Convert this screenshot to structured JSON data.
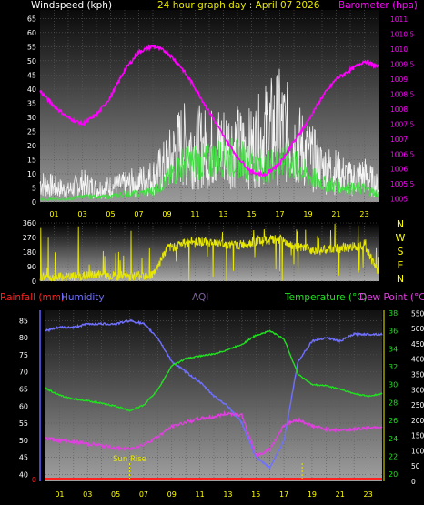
{
  "chart_data": [
    {
      "type": "line",
      "title": "24 hour graph day : April 07 2026",
      "ylabel_left": "Windspeed (kph)",
      "ylabel_right": "Barometer (hpa)",
      "x_ticks": [
        "01",
        "03",
        "05",
        "07",
        "09",
        "11",
        "13",
        "15",
        "17",
        "19",
        "21",
        "23"
      ],
      "ylim_left": [
        0,
        68
      ],
      "yticks_left": [
        0,
        5,
        10,
        15,
        20,
        25,
        30,
        35,
        40,
        45,
        50,
        55,
        60,
        65
      ],
      "ylim_right": [
        1004.9,
        1011.3
      ],
      "yticks_right": [
        1005,
        1005.5,
        1006,
        1006.5,
        1007,
        1007.5,
        1008,
        1008.5,
        1009,
        1009.5,
        1010,
        1010.5,
        1011
      ],
      "grid": true,
      "series": [
        {
          "name": "Barometer",
          "color": "#ff00ff",
          "x": [
            0,
            1,
            2,
            3,
            4,
            5,
            6,
            7,
            8,
            9,
            10,
            11,
            12,
            13,
            14,
            15,
            16,
            17,
            18,
            19,
            20,
            21,
            22,
            23,
            24
          ],
          "y": [
            1008.6,
            1008.1,
            1007.7,
            1007.5,
            1007.8,
            1008.4,
            1009.3,
            1009.9,
            1010.1,
            1009.9,
            1009.4,
            1008.7,
            1007.9,
            1007.1,
            1006.4,
            1005.9,
            1005.8,
            1006.2,
            1006.9,
            1007.6,
            1008.4,
            1009.0,
            1009.3,
            1009.6,
            1009.4
          ]
        },
        {
          "name": "Gust",
          "color": "#ffffff",
          "x": [
            0,
            1,
            2,
            3,
            4,
            5,
            6,
            7,
            8,
            9,
            10,
            11,
            12,
            13,
            14,
            15,
            16,
            17,
            18,
            19,
            20,
            21,
            22,
            23,
            24
          ],
          "y": [
            10,
            8,
            6,
            10,
            7,
            8,
            9,
            11,
            13,
            20,
            30,
            29,
            28,
            30,
            29,
            28,
            36,
            40,
            32,
            25,
            18,
            16,
            12,
            14,
            8
          ]
        },
        {
          "name": "Average",
          "color": "#40e040",
          "x": [
            0,
            1,
            2,
            3,
            4,
            5,
            6,
            7,
            8,
            9,
            10,
            11,
            12,
            13,
            14,
            15,
            16,
            17,
            18,
            19,
            20,
            21,
            22,
            23,
            24
          ],
          "y": [
            1,
            1,
            1,
            2,
            2,
            2,
            3,
            3,
            4,
            8,
            14,
            15,
            15,
            17,
            16,
            15,
            13,
            16,
            14,
            10,
            7,
            6,
            5,
            5,
            3
          ]
        }
      ]
    },
    {
      "type": "scatter",
      "title": "",
      "ylabel_right": "N W S E N",
      "compass": [
        "N",
        "W",
        "S",
        "E",
        "N"
      ],
      "ylim": [
        0,
        360
      ],
      "yticks": [
        0,
        90,
        180,
        270,
        360
      ],
      "series": [
        {
          "name": "Wind direction",
          "color": "#e8e800",
          "x": [
            0,
            1,
            2,
            3,
            4,
            5,
            6,
            7,
            8,
            9,
            10,
            11,
            12,
            13,
            14,
            15,
            16,
            17,
            18,
            19,
            20,
            21,
            22,
            23,
            24
          ],
          "y": [
            30,
            20,
            25,
            30,
            40,
            35,
            30,
            35,
            40,
            200,
            230,
            250,
            240,
            230,
            220,
            240,
            250,
            260,
            210,
            200,
            190,
            200,
            210,
            230,
            50
          ]
        }
      ]
    },
    {
      "type": "line",
      "title": "",
      "labels_top": {
        "rainfall": "Rainfall (mm)",
        "humidity": "Humidity",
        "aqi": "AQI",
        "temperature": "Temperature (°C)",
        "dewpoint": "Dew Point (°C)"
      },
      "x_ticks": [
        "01",
        "03",
        "05",
        "07",
        "09",
        "11",
        "13",
        "15",
        "17",
        "19",
        "21",
        "23"
      ],
      "ylim_humidity": [
        38,
        88
      ],
      "yticks_humidity": [
        40,
        45,
        50,
        55,
        60,
        65,
        70,
        75,
        80,
        85
      ],
      "ylim_temp": [
        19.2,
        38.3
      ],
      "yticks_temp": [
        20,
        22,
        24,
        26,
        28,
        30,
        32,
        34,
        36,
        38
      ],
      "ylim_aqi": [
        0,
        560
      ],
      "yticks_aqi": [
        0,
        50,
        100,
        150,
        200,
        250,
        300,
        350,
        400,
        450,
        500,
        550
      ],
      "annotations": [
        {
          "text": "Sun Rise",
          "x": 6.0
        },
        {
          "text": "",
          "x": 18.3
        }
      ],
      "grid": true,
      "series": [
        {
          "name": "Rainfall",
          "color": "#ff2020",
          "x": [
            0,
            24
          ],
          "y": [
            0,
            0
          ]
        },
        {
          "name": "Humidity",
          "color": "#7070ff",
          "x": [
            0,
            1,
            2,
            3,
            4,
            5,
            6,
            7,
            8,
            9,
            10,
            11,
            12,
            13,
            14,
            15,
            16,
            17,
            18,
            19,
            20,
            21,
            22,
            23,
            24
          ],
          "y": [
            82,
            83,
            83,
            84,
            84,
            84,
            85,
            84,
            80,
            73,
            70,
            67,
            63,
            60,
            55,
            45,
            42,
            50,
            73,
            79,
            80,
            79,
            81,
            81,
            81
          ]
        },
        {
          "name": "Temperature",
          "color": "#20e020",
          "x": [
            0,
            1,
            2,
            3,
            4,
            5,
            6,
            7,
            8,
            9,
            10,
            11,
            12,
            13,
            14,
            15,
            16,
            17,
            18,
            19,
            20,
            21,
            22,
            23,
            24
          ],
          "y": [
            29.6,
            28.8,
            28.4,
            28.2,
            27.9,
            27.6,
            27.1,
            27.7,
            29.4,
            32.1,
            32.9,
            33.2,
            33.4,
            33.9,
            34.5,
            35.5,
            36.0,
            35.1,
            31.2,
            30.0,
            29.9,
            29.5,
            29.0,
            28.7,
            29.0
          ]
        },
        {
          "name": "Dew Point",
          "color": "#e040e0",
          "x": [
            0,
            1,
            2,
            3,
            4,
            5,
            6,
            7,
            8,
            9,
            10,
            11,
            12,
            13,
            14,
            15,
            16,
            17,
            18,
            19,
            20,
            21,
            22,
            23,
            24
          ],
          "y": [
            24.0,
            23.8,
            23.6,
            23.4,
            23.2,
            22.9,
            22.8,
            23.3,
            24.2,
            25.3,
            25.8,
            26.2,
            26.4,
            26.8,
            26.6,
            22.0,
            22.8,
            25.5,
            26.1,
            25.4,
            25.0,
            24.9,
            25.0,
            25.2,
            25.3
          ]
        }
      ]
    }
  ],
  "colors": {
    "label_left": "#ffffff",
    "title": "#e8e800",
    "barometer": "#ff00ff",
    "rain": "#ff2020",
    "humidity": "#7070ff",
    "aqi": "#8060a0",
    "temperature": "#20e020",
    "dewpoint": "#e040e0",
    "tick": "#ffff00",
    "compass": "#ffff00"
  }
}
